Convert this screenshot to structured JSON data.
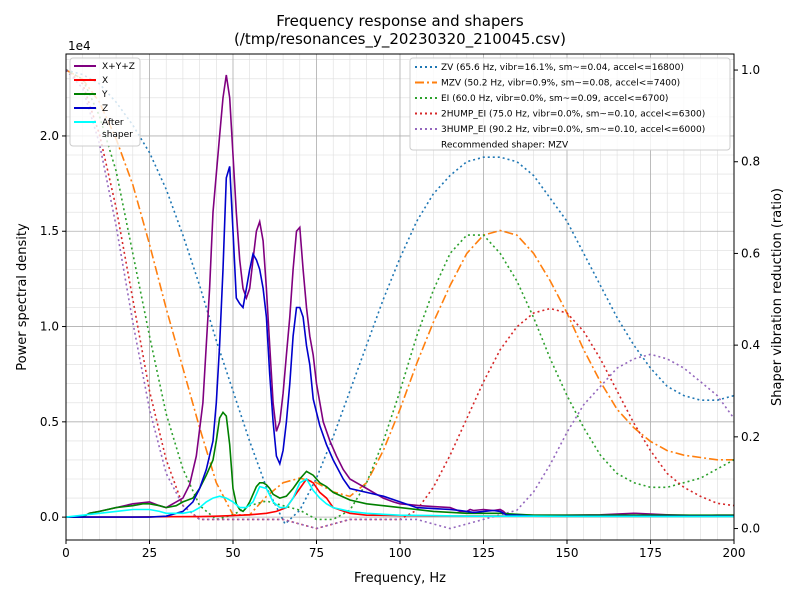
{
  "chart_data": {
    "type": "line",
    "title": "Frequency response and shapers",
    "subtitle": "(/tmp/resonances_y_20230320_210045.csv)",
    "xlabel": "Frequency, Hz",
    "ylabel": "Power spectral density",
    "y2label": "Shaper vibration reduction (ratio)",
    "y_exponent_label": "1e4",
    "xlim": [
      0,
      200
    ],
    "ylim": [
      -0.12,
      2.43
    ],
    "y2lim": [
      -0.025,
      1.035
    ],
    "x_ticks": [
      0,
      25,
      50,
      75,
      100,
      125,
      150,
      175,
      200
    ],
    "x_tick_labels": [
      "0",
      "25",
      "50",
      "75",
      "100",
      "125",
      "150",
      "175",
      "200"
    ],
    "y_ticks": [
      0.0,
      0.5,
      1.0,
      1.5,
      2.0
    ],
    "y_tick_labels": [
      "0.0",
      "0.5",
      "1.0",
      "1.5",
      "2.0"
    ],
    "y2_ticks": [
      0.0,
      0.2,
      0.4,
      0.6,
      0.8,
      1.0
    ],
    "y2_tick_labels": [
      "0.0",
      "0.2",
      "0.4",
      "0.6",
      "0.8",
      "1.0"
    ],
    "grid": true,
    "psd_legend_title": "",
    "psd_series": [
      {
        "name": "X+Y+Z",
        "color": "#800080",
        "x": [
          0,
          5,
          7,
          10,
          15,
          20,
          25,
          28,
          30,
          33,
          35,
          37,
          39,
          41,
          43,
          44,
          45,
          46,
          47,
          48,
          49,
          50,
          51,
          52,
          53,
          54,
          55,
          56,
          57,
          58,
          59,
          60,
          61,
          62,
          63,
          64,
          65,
          66,
          67,
          68,
          69,
          70,
          71,
          72,
          73,
          74,
          75,
          77,
          79,
          81,
          83,
          85,
          88,
          90,
          93,
          95,
          98,
          100,
          103,
          106,
          110,
          115,
          118,
          120,
          121,
          122,
          125,
          128,
          130,
          131,
          132,
          133,
          135,
          140,
          150,
          160,
          170,
          180,
          190,
          195,
          200
        ],
        "y": [
          0,
          0,
          0.02,
          0.03,
          0.05,
          0.07,
          0.08,
          0.06,
          0.05,
          0.08,
          0.1,
          0.17,
          0.32,
          0.6,
          1.2,
          1.6,
          1.8,
          2.0,
          2.2,
          2.32,
          2.2,
          1.9,
          1.6,
          1.35,
          1.2,
          1.15,
          1.2,
          1.35,
          1.5,
          1.55,
          1.45,
          1.2,
          0.9,
          0.6,
          0.45,
          0.5,
          0.65,
          0.85,
          1.05,
          1.3,
          1.5,
          1.52,
          1.3,
          1.1,
          0.95,
          0.85,
          0.7,
          0.5,
          0.4,
          0.32,
          0.25,
          0.2,
          0.17,
          0.15,
          0.12,
          0.1,
          0.08,
          0.07,
          0.065,
          0.06,
          0.055,
          0.05,
          0.03,
          0.03,
          0.04,
          0.035,
          0.04,
          0.035,
          0.04,
          0.03,
          0.012,
          0.01,
          0.012,
          0.01,
          0.01,
          0.012,
          0.02,
          0.012,
          0.008,
          0.01,
          0.01
        ]
      },
      {
        "name": "X",
        "color": "#ff0000",
        "x": [
          0,
          5,
          10,
          20,
          30,
          40,
          45,
          50,
          55,
          60,
          63,
          66,
          68,
          70,
          72,
          74,
          76,
          78,
          80,
          85,
          90,
          100,
          110,
          120,
          130,
          140,
          150,
          160,
          170,
          180,
          190,
          200
        ],
        "y": [
          0,
          0,
          0,
          0,
          0.002,
          0.003,
          0.005,
          0.008,
          0.012,
          0.02,
          0.03,
          0.05,
          0.1,
          0.15,
          0.2,
          0.18,
          0.13,
          0.1,
          0.05,
          0.02,
          0.01,
          0.008,
          0.006,
          0.006,
          0.006,
          0.005,
          0.004,
          0.004,
          0.004,
          0.003,
          0.003,
          0.003
        ]
      },
      {
        "name": "Y",
        "color": "#008000",
        "x": [
          0,
          5,
          7,
          10,
          15,
          20,
          23,
          25,
          28,
          30,
          33,
          35,
          38,
          40,
          42,
          44,
          45,
          46,
          47,
          48,
          49,
          50,
          51,
          52,
          53,
          54,
          55,
          56,
          57,
          58,
          59,
          60,
          61,
          62,
          64,
          66,
          68,
          70,
          72,
          74,
          76,
          78,
          80,
          85,
          90,
          95,
          100,
          110,
          120,
          125,
          130,
          140,
          150,
          160,
          170,
          180,
          190,
          200
        ],
        "y": [
          0,
          0,
          0.02,
          0.03,
          0.05,
          0.06,
          0.07,
          0.07,
          0.06,
          0.05,
          0.06,
          0.08,
          0.1,
          0.15,
          0.22,
          0.3,
          0.4,
          0.52,
          0.55,
          0.53,
          0.38,
          0.15,
          0.07,
          0.04,
          0.03,
          0.05,
          0.08,
          0.12,
          0.16,
          0.18,
          0.18,
          0.17,
          0.15,
          0.12,
          0.1,
          0.11,
          0.15,
          0.2,
          0.24,
          0.22,
          0.18,
          0.16,
          0.13,
          0.09,
          0.07,
          0.06,
          0.05,
          0.03,
          0.02,
          0.02,
          0.02,
          0.01,
          0.01,
          0.01,
          0.01,
          0.01,
          0.01,
          0.01
        ]
      },
      {
        "name": "Z",
        "color": "#0000cc",
        "x": [
          0,
          5,
          10,
          15,
          20,
          25,
          30,
          35,
          38,
          40,
          42,
          44,
          45,
          46,
          47,
          48,
          49,
          50,
          51,
          52,
          53,
          54,
          55,
          56,
          57,
          58,
          59,
          60,
          61,
          62,
          63,
          64,
          65,
          66,
          67,
          68,
          69,
          70,
          71,
          72,
          73,
          74,
          75,
          76,
          78,
          80,
          83,
          85,
          90,
          95,
          100,
          105,
          110,
          115,
          118,
          120,
          122,
          125,
          128,
          130,
          131,
          132,
          135,
          140,
          150,
          160,
          170,
          180,
          190,
          200
        ],
        "y": [
          0,
          0,
          0,
          0,
          0,
          0,
          0.005,
          0.03,
          0.08,
          0.15,
          0.25,
          0.4,
          0.6,
          0.9,
          1.3,
          1.78,
          1.84,
          1.5,
          1.15,
          1.12,
          1.1,
          1.2,
          1.3,
          1.38,
          1.35,
          1.3,
          1.2,
          1.05,
          0.75,
          0.5,
          0.32,
          0.28,
          0.35,
          0.5,
          0.7,
          0.95,
          1.1,
          1.1,
          1.05,
          0.9,
          0.8,
          0.62,
          0.55,
          0.48,
          0.38,
          0.3,
          0.2,
          0.15,
          0.13,
          0.11,
          0.08,
          0.05,
          0.045,
          0.04,
          0.035,
          0.03,
          0.025,
          0.03,
          0.035,
          0.03,
          0.02,
          0.01,
          0.01,
          0.005,
          0.005,
          0.005,
          0.005,
          0.005,
          0.005,
          0.005
        ]
      },
      {
        "name": "After\nshaper",
        "color": "#00ffff",
        "x": [
          0,
          5,
          10,
          15,
          20,
          25,
          28,
          30,
          33,
          35,
          38,
          40,
          42,
          44,
          46,
          48,
          50,
          52,
          54,
          56,
          58,
          60,
          62,
          64,
          66,
          68,
          70,
          72,
          74,
          76,
          78,
          80,
          85,
          90,
          95,
          100,
          110,
          120,
          130,
          140,
          150,
          160,
          170,
          180,
          190,
          200
        ],
        "y": [
          0,
          0.01,
          0.02,
          0.03,
          0.04,
          0.04,
          0.03,
          0.02,
          0.02,
          0.02,
          0.03,
          0.05,
          0.08,
          0.1,
          0.11,
          0.1,
          0.08,
          0.05,
          0.05,
          0.08,
          0.16,
          0.15,
          0.08,
          0.05,
          0.05,
          0.1,
          0.18,
          0.2,
          0.14,
          0.1,
          0.07,
          0.05,
          0.03,
          0.02,
          0.015,
          0.01,
          0.008,
          0.005,
          0.005,
          0.005,
          0.004,
          0.004,
          0.004,
          0.003,
          0.003,
          0.003
        ]
      }
    ],
    "shaper_series": [
      {
        "name": "ZV (65.6 Hz, vibr=16.1%, sm~=0.04, accel<=16800)",
        "color": "#1f77b4",
        "dash": "2,3",
        "x": [
          0,
          5,
          10,
          15,
          20,
          25,
          30,
          35,
          40,
          45,
          50,
          55,
          60,
          65.6,
          70,
          75,
          80,
          85,
          90,
          95,
          100,
          105,
          110,
          115,
          120,
          125,
          130,
          135,
          140,
          145,
          150,
          155,
          160,
          165,
          170,
          175,
          180,
          185,
          190,
          195,
          200
        ],
        "y": [
          1.0,
          0.99,
          0.97,
          0.93,
          0.88,
          0.82,
          0.74,
          0.64,
          0.53,
          0.41,
          0.3,
          0.19,
          0.09,
          0.01,
          0.04,
          0.11,
          0.2,
          0.3,
          0.4,
          0.5,
          0.59,
          0.67,
          0.73,
          0.77,
          0.8,
          0.81,
          0.81,
          0.8,
          0.77,
          0.72,
          0.67,
          0.6,
          0.53,
          0.46,
          0.4,
          0.35,
          0.31,
          0.29,
          0.28,
          0.28,
          0.29
        ]
      },
      {
        "name": "MZV (50.2 Hz, vibr=0.9%, sm~=0.08, accel<=7400)",
        "color": "#ff7f0e",
        "dash": "9,3,2,3",
        "x": [
          0,
          5,
          10,
          15,
          20,
          25,
          30,
          35,
          40,
          45,
          50,
          55,
          60,
          65,
          70,
          75,
          80,
          85,
          90,
          95,
          100,
          105,
          110,
          115,
          120,
          125,
          130,
          135,
          140,
          145,
          150,
          155,
          160,
          165,
          170,
          175,
          180,
          185,
          190,
          195,
          200
        ],
        "y": [
          1.0,
          0.98,
          0.93,
          0.85,
          0.75,
          0.62,
          0.48,
          0.35,
          0.22,
          0.1,
          0.03,
          0.03,
          0.07,
          0.1,
          0.11,
          0.1,
          0.08,
          0.07,
          0.1,
          0.17,
          0.26,
          0.36,
          0.45,
          0.53,
          0.6,
          0.64,
          0.65,
          0.64,
          0.6,
          0.54,
          0.47,
          0.39,
          0.32,
          0.26,
          0.22,
          0.19,
          0.17,
          0.16,
          0.155,
          0.15,
          0.15
        ]
      },
      {
        "name": "EI (60.0 Hz, vibr=0.0%, sm~=0.09, accel<=6700)",
        "color": "#2ca02c",
        "dash": "2,3",
        "x": [
          0,
          5,
          10,
          15,
          20,
          25,
          30,
          35,
          40,
          45,
          50,
          55,
          60,
          65,
          70,
          75,
          80,
          85,
          90,
          95,
          100,
          105,
          110,
          115,
          120,
          125,
          130,
          135,
          140,
          145,
          150,
          155,
          160,
          165,
          170,
          175,
          180,
          185,
          190,
          195,
          200
        ],
        "y": [
          1.0,
          0.98,
          0.9,
          0.78,
          0.6,
          0.42,
          0.25,
          0.13,
          0.05,
          0.02,
          0.03,
          0.05,
          0.06,
          0.05,
          0.04,
          0.02,
          0.02,
          0.04,
          0.1,
          0.19,
          0.3,
          0.42,
          0.52,
          0.6,
          0.64,
          0.64,
          0.6,
          0.54,
          0.46,
          0.37,
          0.29,
          0.22,
          0.16,
          0.12,
          0.1,
          0.09,
          0.09,
          0.1,
          0.11,
          0.13,
          0.15
        ]
      },
      {
        "name": "2HUMP_EI (75.0 Hz, vibr=0.0%, sm~=0.10, accel<=6300)",
        "color": "#d62728",
        "dash": "2,3",
        "x": [
          0,
          5,
          10,
          15,
          20,
          25,
          30,
          35,
          40,
          45,
          50,
          55,
          60,
          65,
          70,
          75,
          80,
          85,
          90,
          95,
          100,
          105,
          110,
          115,
          120,
          125,
          130,
          135,
          140,
          145,
          150,
          155,
          160,
          165,
          170,
          175,
          180,
          185,
          190,
          195,
          200
        ],
        "y": [
          1.0,
          0.97,
          0.86,
          0.7,
          0.5,
          0.3,
          0.15,
          0.05,
          0.02,
          0.02,
          0.02,
          0.02,
          0.02,
          0.02,
          0.01,
          0.0,
          0.01,
          0.02,
          0.02,
          0.02,
          0.02,
          0.04,
          0.09,
          0.16,
          0.24,
          0.32,
          0.39,
          0.44,
          0.47,
          0.48,
          0.47,
          0.43,
          0.37,
          0.3,
          0.23,
          0.17,
          0.12,
          0.09,
          0.07,
          0.055,
          0.05
        ]
      },
      {
        "name": "3HUMP_EI (90.2 Hz, vibr=0.0%, sm~=0.10, accel<=6000)",
        "color": "#9467bd",
        "dash": "2,3",
        "x": [
          0,
          5,
          10,
          15,
          20,
          25,
          30,
          35,
          40,
          45,
          50,
          55,
          60,
          65,
          70,
          75,
          80,
          85,
          90,
          95,
          100,
          105,
          110,
          115,
          120,
          125,
          130,
          135,
          140,
          145,
          150,
          155,
          160,
          165,
          170,
          175,
          180,
          185,
          190,
          195,
          200
        ],
        "y": [
          1.0,
          0.96,
          0.84,
          0.66,
          0.45,
          0.26,
          0.12,
          0.05,
          0.02,
          0.02,
          0.02,
          0.02,
          0.02,
          0.02,
          0.01,
          0.0,
          0.01,
          0.02,
          0.02,
          0.02,
          0.02,
          0.02,
          0.01,
          0.0,
          0.01,
          0.02,
          0.03,
          0.04,
          0.08,
          0.14,
          0.21,
          0.27,
          0.31,
          0.35,
          0.37,
          0.38,
          0.37,
          0.35,
          0.32,
          0.29,
          0.24
        ]
      }
    ],
    "recommended_label": "Recommended shaper: MZV"
  }
}
